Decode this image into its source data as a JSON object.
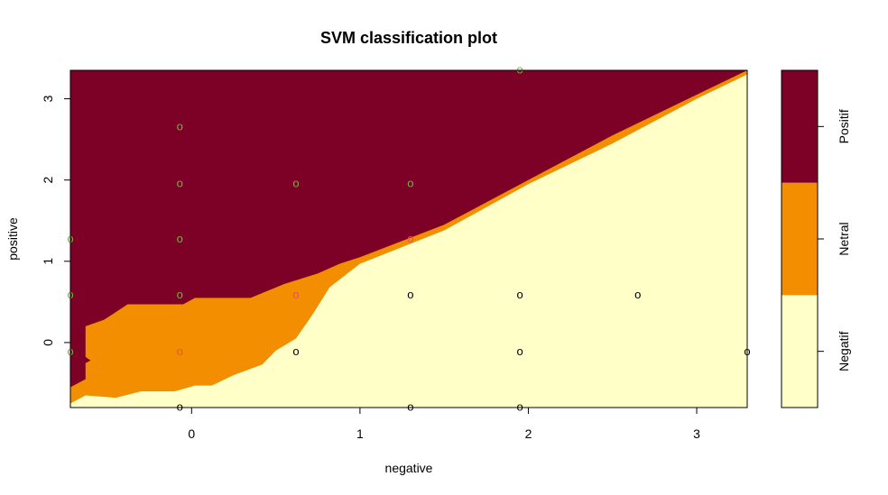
{
  "chart_data": {
    "type": "scatter",
    "title": "SVM classification plot",
    "xlabel": "negative",
    "ylabel": "positive",
    "xlim": [
      -0.72,
      3.3
    ],
    "ylim": [
      -0.8,
      3.35
    ],
    "x_ticks": [
      "0",
      "1",
      "2",
      "3"
    ],
    "y_ticks": [
      "0",
      "1",
      "2",
      "3"
    ],
    "legend": {
      "placement": "right",
      "entries": [
        "Negatif",
        "Netral",
        "Positif"
      ]
    },
    "colors": {
      "Positif": "#7d0027",
      "Netral": "#f28e00",
      "Negatif": "#ffffc7",
      "point_positif": "#76b041",
      "point_netral": "#e8505b",
      "point_negatif": "#000000"
    },
    "marker": "o",
    "regions": {
      "positif_boundary": [
        [
          -0.72,
          -0.55
        ],
        [
          -0.63,
          -0.45
        ],
        [
          -0.63,
          0.2
        ],
        [
          -0.52,
          0.28
        ],
        [
          -0.38,
          0.47
        ],
        [
          -0.05,
          0.47
        ],
        [
          0.02,
          0.55
        ],
        [
          0.35,
          0.55
        ],
        [
          0.55,
          0.72
        ],
        [
          0.75,
          0.85
        ],
        [
          0.88,
          0.97
        ],
        [
          1.0,
          1.05
        ],
        [
          1.5,
          1.45
        ],
        [
          2.0,
          2.0
        ],
        [
          2.5,
          2.55
        ],
        [
          3.0,
          3.05
        ],
        [
          3.3,
          3.35
        ]
      ],
      "netral_boundary": [
        [
          -0.72,
          -0.75
        ],
        [
          -0.63,
          -0.65
        ],
        [
          -0.45,
          -0.68
        ],
        [
          -0.3,
          -0.6
        ],
        [
          -0.1,
          -0.6
        ],
        [
          0.02,
          -0.53
        ],
        [
          0.12,
          -0.53
        ],
        [
          0.25,
          -0.4
        ],
        [
          0.42,
          -0.27
        ],
        [
          0.5,
          -0.1
        ],
        [
          0.62,
          0.05
        ],
        [
          0.72,
          0.35
        ],
        [
          0.82,
          0.68
        ],
        [
          1.0,
          0.97
        ],
        [
          1.5,
          1.38
        ],
        [
          2.0,
          1.95
        ],
        [
          2.5,
          2.45
        ],
        [
          3.0,
          3.0
        ],
        [
          3.3,
          3.3
        ]
      ],
      "positif_notch": [
        [
          -0.72,
          -0.35
        ],
        [
          -0.6,
          -0.22
        ],
        [
          -0.72,
          -0.05
        ]
      ]
    },
    "series": [
      {
        "name": "Positif",
        "points": [
          [
            -0.07,
            2.65
          ],
          [
            -0.07,
            1.95
          ],
          [
            0.62,
            1.95
          ],
          [
            1.3,
            1.95
          ],
          [
            -0.07,
            1.27
          ],
          [
            -0.72,
            1.27
          ],
          [
            -0.72,
            0.58
          ],
          [
            -0.07,
            0.58
          ],
          [
            -0.72,
            -0.12
          ],
          [
            1.95,
            3.35
          ]
        ]
      },
      {
        "name": "Netral",
        "points": [
          [
            1.3,
            1.27
          ],
          [
            0.62,
            0.58
          ],
          [
            -0.07,
            -0.12
          ]
        ]
      },
      {
        "name": "Negatif",
        "points": [
          [
            1.3,
            0.58
          ],
          [
            1.95,
            0.58
          ],
          [
            2.65,
            0.58
          ],
          [
            0.62,
            -0.12
          ],
          [
            1.95,
            -0.12
          ],
          [
            3.3,
            -0.12
          ],
          [
            -0.07,
            -0.8
          ],
          [
            1.3,
            -0.8
          ],
          [
            1.95,
            -0.8
          ]
        ]
      }
    ]
  }
}
